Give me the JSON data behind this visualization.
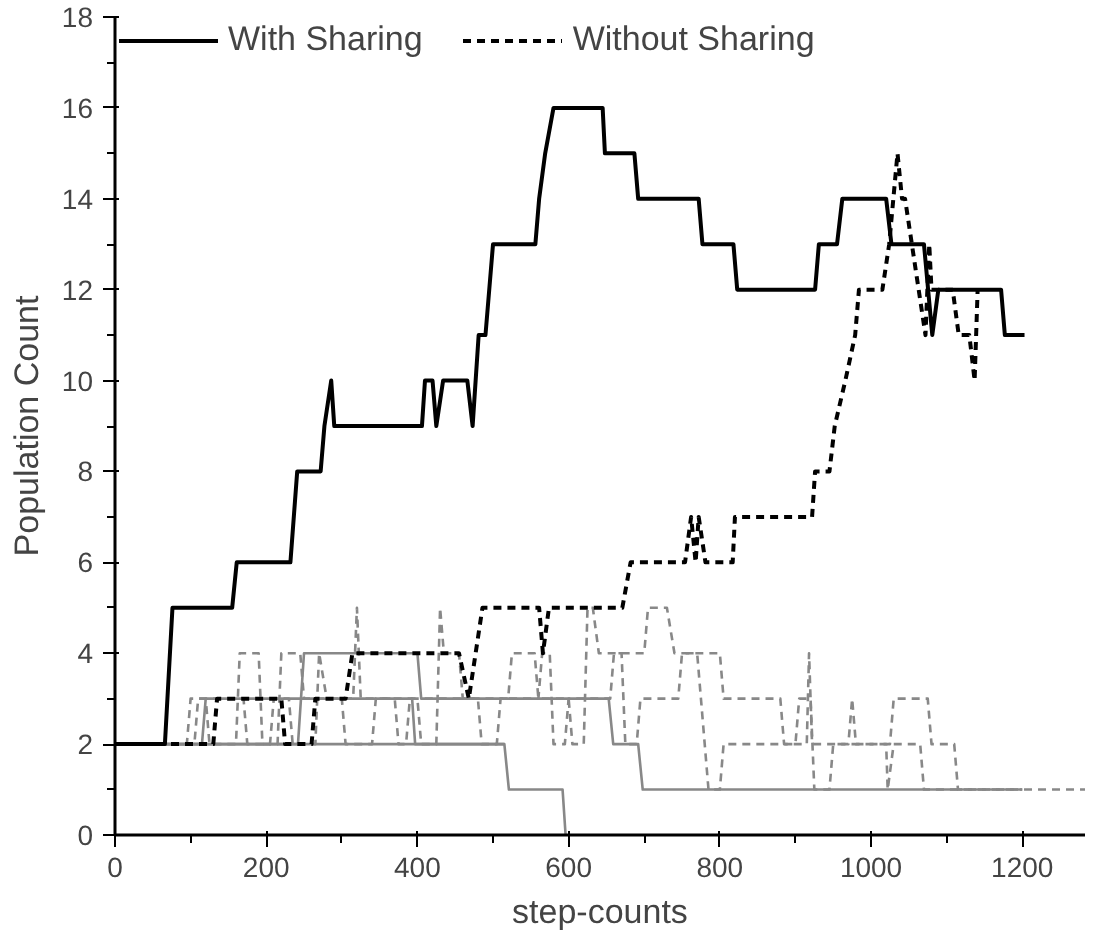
{
  "chart_data": {
    "type": "line",
    "xlabel": "step-counts",
    "ylabel": "Population Count",
    "xlim": [
      0,
      1283
    ],
    "ylim": [
      0,
      18
    ],
    "xticks": [
      0,
      {
        "value": 100,
        "label": null
      },
      200,
      {
        "value": 300,
        "label": null
      },
      400,
      {
        "value": 500,
        "label": null
      },
      600,
      {
        "value": 700,
        "label": null
      },
      800,
      {
        "value": 900,
        "label": null
      },
      1000,
      {
        "value": 1100,
        "label": null
      },
      1200
    ],
    "yticks": [
      0,
      {
        "value": 1,
        "label": null
      },
      2,
      {
        "value": 3,
        "label": null
      },
      4,
      {
        "value": 5,
        "label": null
      },
      6,
      {
        "value": 7,
        "label": null
      },
      8,
      {
        "value": 9,
        "label": null
      },
      10,
      {
        "value": 11,
        "label": null
      },
      12,
      {
        "value": 13,
        "label": null
      },
      14,
      {
        "value": 15,
        "label": null
      },
      16,
      {
        "value": 17,
        "label": null
      },
      18
    ],
    "grid": false,
    "legend": "top left",
    "marker": "none",
    "series": [
      {
        "color": "#888888",
        "line_style": "solid",
        "x": [
          0,
          515,
          521,
          592,
          596
        ],
        "values": [
          2,
          2,
          1,
          1,
          0
        ]
      },
      {
        "color": "#888888",
        "line_style": "solid",
        "x": [
          0,
          115,
          120,
          393,
          397,
          515
        ],
        "values": [
          2,
          2,
          3,
          3,
          2,
          2
        ]
      },
      {
        "color": "#888888",
        "line_style": "solid",
        "x": [
          0,
          242,
          250,
          400,
          405,
          653,
          659,
          692,
          698,
          1200
        ],
        "values": [
          2,
          2,
          4,
          4,
          3,
          3,
          2,
          2,
          1,
          1
        ]
      },
      {
        "color": "#888888",
        "line_style": "dashed",
        "x": [
          0,
          95,
          100,
          120,
          125,
          160,
          165,
          190,
          195,
          215,
          220,
          245,
          250,
          315,
          320,
          325,
          400,
          405,
          425,
          430,
          435,
          455,
          460,
          520,
          525,
          555,
          560,
          600,
          605,
          620,
          625,
          632,
          640,
          700,
          705,
          730,
          740,
          800,
          805,
          880,
          885,
          915,
          918,
          922,
          970,
          975,
          980,
          1025,
          1030,
          1075,
          1080,
          1110,
          1115,
          1283
        ],
        "values": [
          2,
          2,
          3,
          3,
          2,
          2,
          4,
          4,
          2,
          2,
          4,
          4,
          3,
          3,
          5,
          3,
          3,
          2,
          2,
          5,
          4,
          4,
          3,
          3,
          4,
          4,
          3,
          3,
          2,
          2,
          5,
          5,
          4,
          4,
          5,
          5,
          4,
          4,
          3,
          3,
          2,
          2,
          4,
          2,
          2,
          3,
          2,
          2,
          3,
          3,
          2,
          2,
          1,
          1
        ]
      },
      {
        "color": "#888888",
        "line_style": "dashed",
        "x": [
          0,
          105,
          110,
          170,
          175,
          205,
          210,
          230,
          235,
          265,
          270,
          280,
          300,
          305,
          340,
          345,
          370,
          375,
          385,
          390,
          480,
          485,
          505,
          510,
          560,
          565,
          575,
          580,
          595,
          600,
          655,
          660,
          670,
          675,
          690,
          695,
          745,
          750,
          770,
          775,
          785,
          800,
          805,
          900,
          905,
          920,
          925,
          945,
          950,
          1020,
          1022,
          1030,
          1065,
          1070,
          1200
        ],
        "values": [
          2,
          2,
          3,
          3,
          2,
          2,
          3,
          3,
          2,
          2,
          4,
          3,
          3,
          2,
          2,
          3,
          3,
          2,
          2,
          3,
          3,
          2,
          2,
          3,
          3,
          4,
          4,
          2,
          2,
          3,
          3,
          4,
          4,
          2,
          2,
          3,
          3,
          4,
          4,
          3,
          1,
          1,
          2,
          2,
          3,
          3,
          1,
          1,
          2,
          2,
          1,
          2,
          2,
          1,
          1
        ]
      },
      {
        "name": "With Sharing",
        "color": "#000000",
        "line_style": "solid",
        "x": [
          0,
          66,
          76,
          155,
          161,
          232,
          241,
          272,
          277,
          286,
          290,
          406,
          410,
          420,
          425,
          434,
          466,
          473,
          481,
          490,
          500,
          556,
          561,
          569,
          580,
          645,
          648,
          687,
          692,
          772,
          777,
          818,
          823,
          926,
          931,
          955,
          962,
          1020,
          1027,
          1070,
          1081,
          1089,
          1172,
          1177,
          1203
        ],
        "values": [
          2,
          2,
          5,
          5,
          6,
          6,
          8,
          8,
          9,
          10,
          9,
          9,
          10,
          10,
          9,
          10,
          10,
          9,
          11,
          11,
          13,
          13,
          14,
          15,
          16,
          16,
          15,
          15,
          14,
          14,
          13,
          13,
          12,
          12,
          13,
          13,
          14,
          14,
          13,
          13,
          11,
          12,
          12,
          11,
          11
        ]
      },
      {
        "name": "Without Sharing",
        "color": "#000000",
        "line_style": "dashed",
        "x": [
          0,
          130,
          135,
          220,
          225,
          260,
          265,
          305,
          314,
          455,
          468,
          486,
          561,
          566,
          574,
          671,
          682,
          754,
          762,
          768,
          772,
          781,
          817,
          820,
          922,
          926,
          945,
          952,
          966,
          979,
          984,
          1015,
          1024,
          1035,
          1041,
          1045,
          1072,
          1077,
          1080,
          1108,
          1116,
          1130,
          1137,
          1141
        ],
        "values": [
          2,
          2,
          3,
          3,
          2,
          2,
          3,
          3,
          4,
          4,
          3,
          5,
          5,
          4,
          5,
          5,
          6,
          6,
          7,
          6,
          7,
          6,
          6,
          7,
          7,
          8,
          8,
          9,
          10,
          11,
          12,
          12,
          13,
          15,
          14,
          14,
          11,
          13,
          12,
          12,
          11,
          11,
          10,
          12
        ]
      }
    ]
  }
}
